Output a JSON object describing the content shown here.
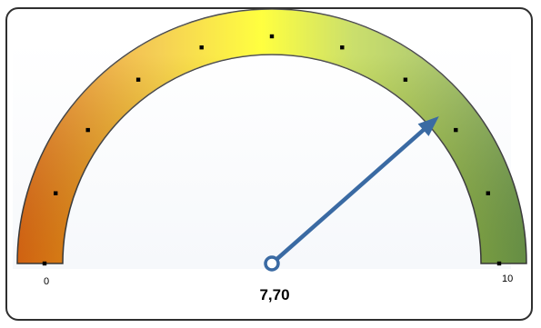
{
  "chart_data": {
    "type": "gauge",
    "min": 0,
    "max": 10,
    "value": 7.7,
    "min_label": "0",
    "max_label": "10",
    "value_label": "7,70",
    "ticks": [
      0,
      1,
      2,
      3,
      4,
      5,
      6,
      7,
      8,
      9,
      10
    ],
    "colors": {
      "low": "#e36a12",
      "mid": "#ffff00",
      "high": "#77a04f",
      "needle": "#3a6aa3",
      "border": "#2f2f2f"
    }
  }
}
